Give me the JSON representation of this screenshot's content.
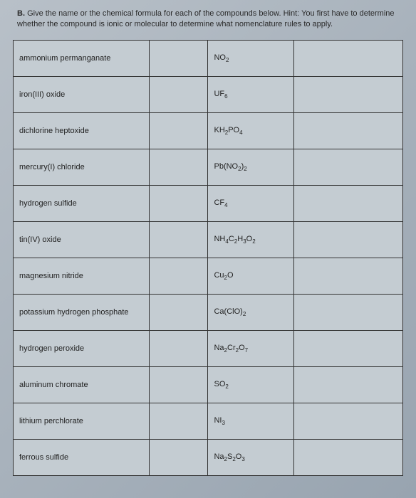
{
  "instructions": {
    "label": "B.",
    "text_part1": "Give the name or the chemical formula for each of the compounds below. Hint: You first have to determine whether the compound is ionic or molecular to determine what nomenclature rules to apply."
  },
  "rows": [
    {
      "name": "ammonium permanganate",
      "formula_html": "NO<sub>2</sub>"
    },
    {
      "name": "iron(III) oxide",
      "formula_html": "UF<sub>6</sub>"
    },
    {
      "name": "dichlorine heptoxide",
      "formula_html": "KH<sub>2</sub>PO<sub>4</sub>"
    },
    {
      "name": "mercury(I) chloride",
      "formula_html": "Pb(NO<sub>2</sub>)<sub>2</sub>"
    },
    {
      "name": "hydrogen sulfide",
      "formula_html": "CF<sub>4</sub>"
    },
    {
      "name": "tin(IV) oxide",
      "formula_html": "NH<sub>4</sub>C<sub>2</sub>H<sub>3</sub>O<sub>2</sub>"
    },
    {
      "name": "magnesium nitride",
      "formula_html": "Cu<sub>2</sub>O"
    },
    {
      "name": "potassium hydrogen phosphate",
      "formula_html": "Ca(ClO)<sub>2</sub>"
    },
    {
      "name": "hydrogen peroxide",
      "formula_html": "Na<sub>2</sub>Cr<sub>2</sub>O<sub>7</sub>"
    },
    {
      "name": "aluminum chromate",
      "formula_html": "SO<sub>2</sub>"
    },
    {
      "name": "lithium perchlorate",
      "formula_html": "NI<sub>3</sub>"
    },
    {
      "name": "ferrous sulfide",
      "formula_html": "Na<sub>2</sub>S<sub>2</sub>O<sub>3</sub>"
    }
  ]
}
